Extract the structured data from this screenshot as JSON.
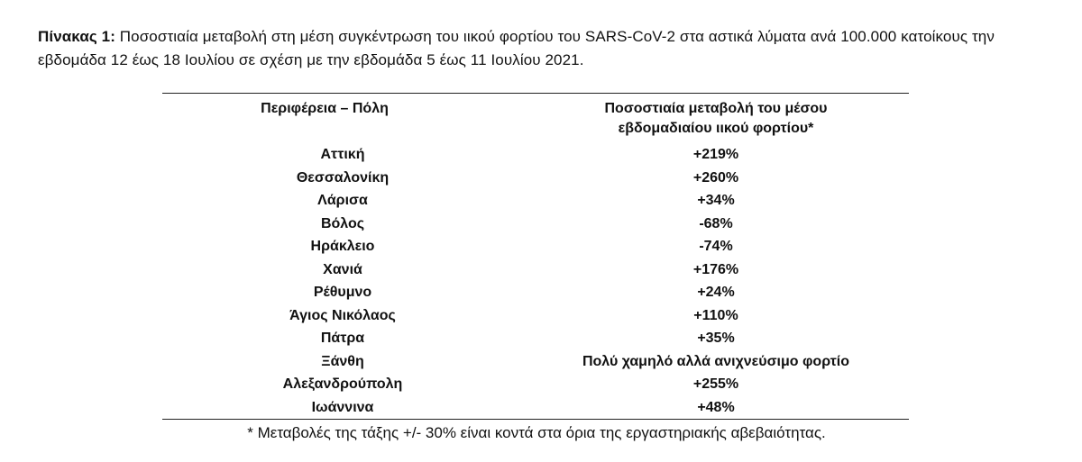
{
  "caption": {
    "label": "Πίνακας 1:",
    "text": "Ποσοστιαία μεταβολή στη μέση συγκέντρωση του ιικού φορτίου του SARS-CoV-2 στα αστικά λύματα ανά 100.000 κατοίκους την εβδομάδα 12 έως 18 Ιουλίου σε σχέση με την εβδομάδα 5 έως 11 Ιουλίου 2021."
  },
  "table": {
    "headers": {
      "region": "Περιφέρεια – Πόλη",
      "change_line1": "Ποσοστιαία μεταβολή του μέσου",
      "change_line2": "εβδομαδιαίου ιικού φορτίου*"
    },
    "rows": [
      {
        "region": "Αττική",
        "change": "+219%"
      },
      {
        "region": "Θεσσαλονίκη",
        "change": "+260%"
      },
      {
        "region": "Λάρισα",
        "change": "+34%"
      },
      {
        "region": "Βόλος",
        "change": "-68%"
      },
      {
        "region": "Ηράκλειο",
        "change": "-74%"
      },
      {
        "region": "Χανιά",
        "change": "+176%"
      },
      {
        "region": "Ρέθυμνο",
        "change": "+24%"
      },
      {
        "region": "Άγιος Νικόλαος",
        "change": "+110%"
      },
      {
        "region": "Πάτρα",
        "change": "+35%"
      },
      {
        "region": "Ξάνθη",
        "change": "Πολύ χαμηλό αλλά ανιχνεύσιμο φορτίο"
      },
      {
        "region": "Αλεξανδρούπολη",
        "change": "+255%"
      },
      {
        "region": "Ιωάννινα",
        "change": "+48%"
      }
    ]
  },
  "footnote": "* Μεταβολές της τάξης +/- 30% είναι κοντά στα όρια της εργαστηριακής αβεβαιότητας."
}
